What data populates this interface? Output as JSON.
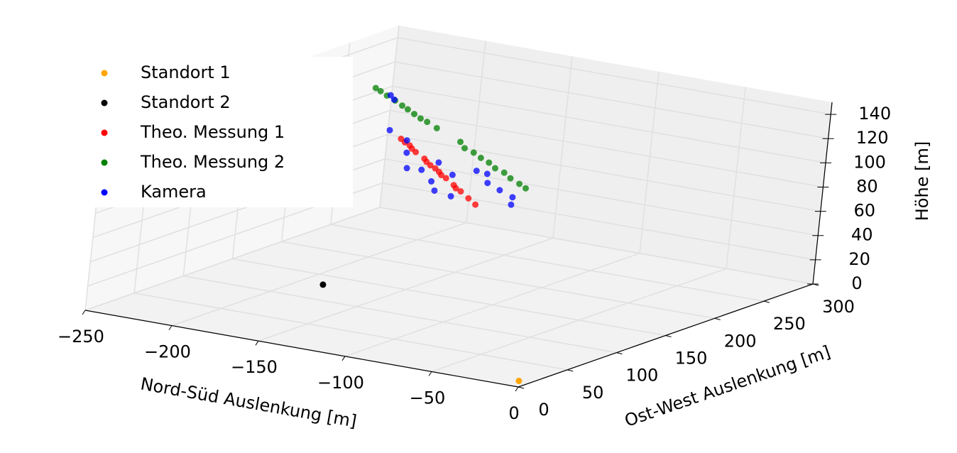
{
  "chart_data": {
    "type": "scatter3d",
    "xlabel": "Nord-Süd Auslenkung [m]",
    "ylabel": "Ost-West Auslenkung [m]",
    "zlabel": "Höhe [m]",
    "xlim": [
      -250,
      0
    ],
    "ylim": [
      0,
      300
    ],
    "zlim": [
      0,
      150
    ],
    "xticks": [
      {
        "value": -250,
        "label": "−250"
      },
      {
        "value": -200,
        "label": "−200"
      },
      {
        "value": -150,
        "label": "−150"
      },
      {
        "value": -100,
        "label": "−100"
      },
      {
        "value": -50,
        "label": "−50"
      },
      0
    ],
    "yticks": [
      0,
      50,
      100,
      150,
      200,
      250,
      300
    ],
    "zticks": [
      0,
      20,
      40,
      60,
      80,
      100,
      120,
      140
    ],
    "grid": true,
    "legend": "upper left",
    "series": [
      {
        "name": "Standort 1",
        "color": "orange",
        "x": [
          0
        ],
        "y": [
          0
        ],
        "z": [
          5
        ]
      },
      {
        "name": "Standort 2",
        "color": "black",
        "x": [
          -187
        ],
        "y": [
          131
        ],
        "z": [
          0
        ]
      },
      {
        "name": "Theo. Messung 1",
        "color": "red",
        "x": [
          -189,
          -185,
          -181,
          -178,
          -174,
          -166,
          -163,
          -159,
          -155,
          -151,
          -148,
          -144,
          -136,
          -133,
          -129,
          -121,
          -114
        ],
        "y": [
          201,
          198,
          196,
          193,
          190,
          185,
          182,
          179,
          177,
          174,
          171,
          169,
          163,
          160,
          158,
          152,
          147
        ],
        "z": [
          100,
          99,
          98,
          97,
          96,
          94,
          93,
          92,
          91,
          90,
          89,
          88,
          86,
          85,
          84,
          82,
          80
        ]
      },
      {
        "name": "Theo. Messung 2",
        "color": "green",
        "x": [
          -216,
          -212,
          -206,
          -200,
          -193,
          -188,
          -183,
          -177,
          -172,
          -164,
          -145,
          -139,
          -132,
          -126,
          -119,
          -113,
          -106,
          -100,
          -93,
          -87
        ],
        "y": [
          219,
          217,
          213,
          211,
          206,
          203,
          201,
          197,
          195,
          191,
          182,
          176,
          173,
          170,
          166,
          162,
          159,
          155,
          152,
          148
        ],
        "z": [
          130,
          129,
          128,
          126,
          125,
          124,
          122,
          121,
          120,
          118,
          114,
          112,
          111,
          109,
          108,
          106,
          105,
          103,
          101,
          100
        ]
      },
      {
        "name": "Kamera",
        "color": "blue",
        "x": [
          -205,
          -200,
          -190,
          -185,
          -178,
          -170,
          -160,
          -150,
          -145,
          -140,
          -130,
          -125,
          -115,
          -110,
          -100,
          -95,
          -90,
          -155
        ],
        "y": [
          215,
          210,
          190,
          200,
          188,
          175,
          172,
          165,
          160,
          168,
          150,
          165,
          158,
          150,
          145,
          150,
          140,
          180
        ],
        "z": [
          128,
          127,
          110,
          100,
          95,
          88,
          90,
          85,
          80,
          92,
          82,
          100,
          102,
          98,
          96,
          90,
          88,
          95
        ]
      }
    ]
  }
}
